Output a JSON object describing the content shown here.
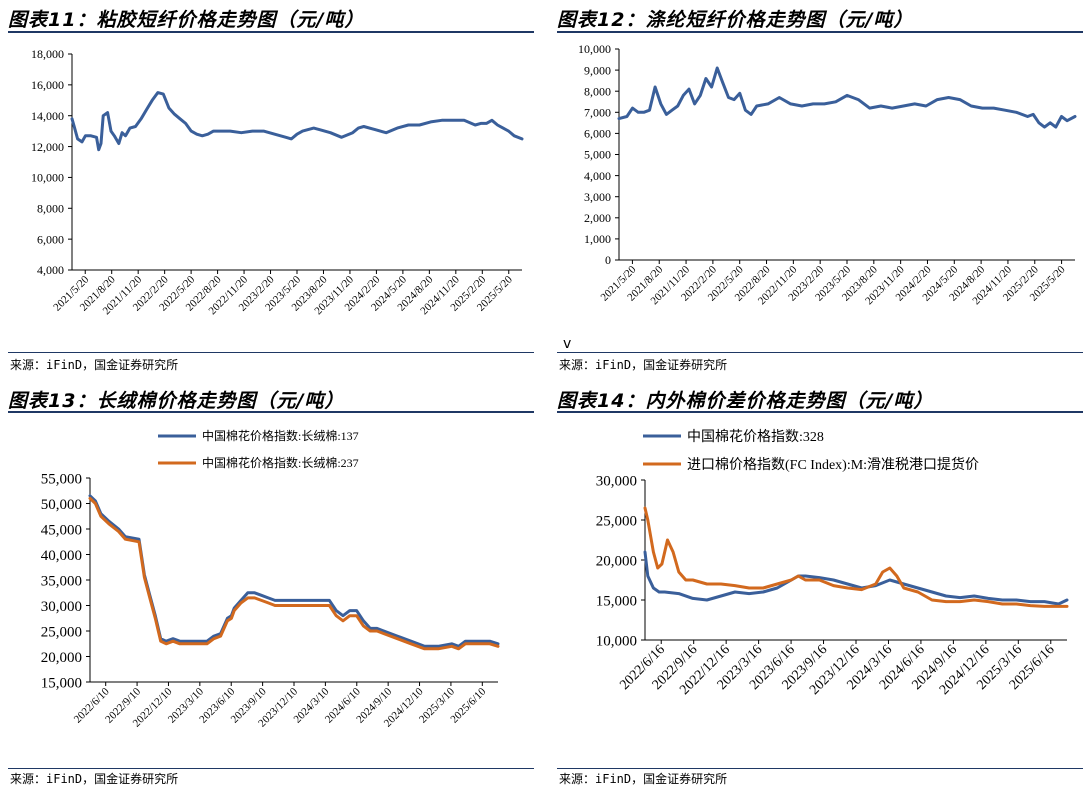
{
  "source_text": "来源：iFinD，国金证券研究所",
  "stray_mark": "v",
  "colors": {
    "blue": "#3a5f9a",
    "orange": "#d2691e",
    "rule": "#1f3864"
  },
  "chart_data": [
    {
      "id": "fig11",
      "type": "line",
      "title": "图表11：粘胶短纤价格走势图（元/吨）",
      "ylim": [
        4000,
        18000
      ],
      "yticks": [
        "18,000",
        "16,000",
        "14,000",
        "12,000",
        "10,000",
        "8,000",
        "6,000",
        "4,000"
      ],
      "ytick_values": [
        18000,
        16000,
        14000,
        12000,
        10000,
        8000,
        6000,
        4000
      ],
      "xticks": [
        "2021/5/20",
        "2021/8/20",
        "2021/11/20",
        "2022/2/20",
        "2022/5/20",
        "2022/8/20",
        "2022/11/20",
        "2023/2/20",
        "2023/5/20",
        "2023/8/20",
        "2023/11/20",
        "2024/2/20",
        "2024/5/20",
        "2024/8/20",
        "2024/11/20",
        "2025/2/20",
        "2025/5/20"
      ],
      "x_start": 2021.38,
      "x_end": 2025.42,
      "series": [
        {
          "name": "粘胶短纤价格",
          "color": "#3a5f9a",
          "x": [
            2021.38,
            2021.4,
            2021.43,
            2021.47,
            2021.5,
            2021.55,
            2021.6,
            2021.62,
            2021.64,
            2021.66,
            2021.7,
            2021.73,
            2021.76,
            2021.8,
            2021.83,
            2021.86,
            2021.9,
            2021.95,
            2022.0,
            2022.05,
            2022.1,
            2022.15,
            2022.2,
            2022.25,
            2022.3,
            2022.35,
            2022.4,
            2022.45,
            2022.5,
            2022.55,
            2022.6,
            2022.65,
            2022.7,
            2022.8,
            2022.9,
            2023.0,
            2023.1,
            2023.2,
            2023.3,
            2023.35,
            2023.4,
            2023.45,
            2023.5,
            2023.55,
            2023.6,
            2023.7,
            2023.8,
            2023.9,
            2023.95,
            2024.0,
            2024.1,
            2024.2,
            2024.3,
            2024.4,
            2024.5,
            2024.6,
            2024.7,
            2024.8,
            2024.9,
            2025.0,
            2025.05,
            2025.1,
            2025.15,
            2025.2,
            2025.25,
            2025.3,
            2025.35,
            2025.42
          ],
          "values": [
            13800,
            13300,
            12500,
            12300,
            12700,
            12700,
            12600,
            11800,
            12200,
            14000,
            14200,
            13000,
            12700,
            12200,
            12900,
            12700,
            13200,
            13300,
            13800,
            14400,
            15000,
            15500,
            15400,
            14500,
            14100,
            13800,
            13500,
            13000,
            12800,
            12700,
            12800,
            13000,
            13000,
            13000,
            12900,
            13000,
            13000,
            12800,
            12600,
            12500,
            12800,
            13000,
            13100,
            13200,
            13100,
            12900,
            12600,
            12900,
            13200,
            13300,
            13100,
            12900,
            13200,
            13400,
            13400,
            13600,
            13700,
            13700,
            13700,
            13400,
            13500,
            13500,
            13700,
            13400,
            13200,
            13000,
            12700,
            12500
          ]
        }
      ]
    },
    {
      "id": "fig12",
      "type": "line",
      "title": "图表12：涤纶短纤价格走势图（元/吨）",
      "ylim": [
        0,
        10000
      ],
      "yticks": [
        "10,000",
        "9,000",
        "8,000",
        "7,000",
        "6,000",
        "5,000",
        "4,000",
        "3,000",
        "2,000",
        "1,000",
        "0"
      ],
      "ytick_values": [
        10000,
        9000,
        8000,
        7000,
        6000,
        5000,
        4000,
        3000,
        2000,
        1000,
        0
      ],
      "xticks": [
        "2021/5/20",
        "2021/8/20",
        "2021/11/20",
        "2022/2/20",
        "2022/5/20",
        "2022/8/20",
        "2022/11/20",
        "2023/2/20",
        "2023/5/20",
        "2023/8/20",
        "2023/11/20",
        "2024/2/20",
        "2024/5/20",
        "2024/8/20",
        "2024/11/20",
        "2025/2/20",
        "2025/5/20"
      ],
      "x_start": 2021.38,
      "x_end": 2025.42,
      "series": [
        {
          "name": "涤纶短纤价格",
          "color": "#3a5f9a",
          "x": [
            2021.38,
            2021.45,
            2021.5,
            2021.55,
            2021.6,
            2021.65,
            2021.7,
            2021.75,
            2021.8,
            2021.85,
            2021.9,
            2021.95,
            2022.0,
            2022.05,
            2022.1,
            2022.15,
            2022.2,
            2022.25,
            2022.3,
            2022.35,
            2022.4,
            2022.45,
            2022.5,
            2022.55,
            2022.6,
            2022.7,
            2022.8,
            2022.9,
            2023.0,
            2023.1,
            2023.2,
            2023.3,
            2023.4,
            2023.5,
            2023.6,
            2023.7,
            2023.8,
            2023.9,
            2024.0,
            2024.1,
            2024.2,
            2024.3,
            2024.4,
            2024.5,
            2024.6,
            2024.7,
            2024.8,
            2024.9,
            2025.0,
            2025.05,
            2025.1,
            2025.15,
            2025.2,
            2025.25,
            2025.3,
            2025.35,
            2025.42
          ],
          "values": [
            6700,
            6800,
            7200,
            7000,
            7000,
            7100,
            8200,
            7400,
            6900,
            7100,
            7300,
            7800,
            8100,
            7400,
            7800,
            8600,
            8200,
            9100,
            8400,
            7700,
            7600,
            7900,
            7100,
            6900,
            7300,
            7400,
            7700,
            7400,
            7300,
            7400,
            7400,
            7500,
            7800,
            7600,
            7200,
            7300,
            7200,
            7300,
            7400,
            7300,
            7600,
            7700,
            7600,
            7300,
            7200,
            7200,
            7100,
            7000,
            6800,
            6900,
            6500,
            6300,
            6500,
            6300,
            6800,
            6600,
            6800
          ]
        }
      ]
    },
    {
      "id": "fig13",
      "type": "line",
      "title": "图表13：长绒棉价格走势图（元/吨）",
      "ylim": [
        15000,
        55000
      ],
      "yticks": [
        "55,000",
        "50,000",
        "45,000",
        "40,000",
        "35,000",
        "30,000",
        "25,000",
        "20,000",
        "15,000"
      ],
      "ytick_values": [
        55000,
        50000,
        45000,
        40000,
        35000,
        30000,
        25000,
        20000,
        15000
      ],
      "xticks": [
        "2022/6/10",
        "2022/9/10",
        "2022/12/10",
        "2023/3/10",
        "2023/6/10",
        "2023/9/10",
        "2023/12/10",
        "2024/3/10",
        "2024/6/10",
        "2024/9/10",
        "2024/12/10",
        "2025/3/10",
        "2025/6/10"
      ],
      "x_start": 2022.44,
      "x_end": 2025.44,
      "series": [
        {
          "name": "中国棉花价格指数:长绒棉:137",
          "color": "#3a5f9a",
          "x": [
            2022.44,
            2022.48,
            2022.52,
            2022.58,
            2022.65,
            2022.7,
            2022.8,
            2022.84,
            2022.88,
            2022.92,
            2022.96,
            2023.0,
            2023.05,
            2023.1,
            2023.15,
            2023.2,
            2023.3,
            2023.35,
            2023.4,
            2023.45,
            2023.48,
            2023.5,
            2023.55,
            2023.6,
            2023.65,
            2023.7,
            2023.75,
            2023.8,
            2023.9,
            2024.0,
            2024.1,
            2024.2,
            2024.25,
            2024.3,
            2024.35,
            2024.4,
            2024.45,
            2024.5,
            2024.55,
            2024.6,
            2024.7,
            2024.8,
            2024.9,
            2025.0,
            2025.1,
            2025.15,
            2025.2,
            2025.3,
            2025.38,
            2025.44
          ],
          "values": [
            51500,
            50500,
            48000,
            46500,
            45000,
            43500,
            43000,
            36000,
            32000,
            28000,
            23500,
            23000,
            23500,
            23000,
            23000,
            23000,
            23000,
            24000,
            24500,
            27500,
            28000,
            29500,
            31000,
            32500,
            32500,
            32000,
            31500,
            31000,
            31000,
            31000,
            31000,
            31000,
            29000,
            28000,
            29000,
            29000,
            27000,
            25500,
            25500,
            25000,
            24000,
            23000,
            22000,
            22000,
            22500,
            22000,
            23000,
            23000,
            23000,
            22500
          ]
        },
        {
          "name": "中国棉花价格指数:长绒棉:237",
          "color": "#d2691e",
          "x": [
            2022.44,
            2022.48,
            2022.52,
            2022.58,
            2022.65,
            2022.7,
            2022.8,
            2022.84,
            2022.88,
            2022.92,
            2022.96,
            2023.0,
            2023.05,
            2023.1,
            2023.15,
            2023.2,
            2023.3,
            2023.35,
            2023.4,
            2023.45,
            2023.48,
            2023.5,
            2023.55,
            2023.6,
            2023.65,
            2023.7,
            2023.75,
            2023.8,
            2023.9,
            2024.0,
            2024.1,
            2024.2,
            2024.25,
            2024.3,
            2024.35,
            2024.4,
            2024.45,
            2024.5,
            2024.55,
            2024.6,
            2024.7,
            2024.8,
            2024.9,
            2025.0,
            2025.1,
            2025.15,
            2025.2,
            2025.3,
            2025.38,
            2025.44
          ],
          "values": [
            51000,
            50000,
            47500,
            46000,
            44500,
            43000,
            42500,
            35500,
            31500,
            27500,
            23000,
            22500,
            23000,
            22500,
            22500,
            22500,
            22500,
            23500,
            24000,
            27000,
            27500,
            29000,
            30500,
            31500,
            31500,
            31000,
            30500,
            30000,
            30000,
            30000,
            30000,
            30000,
            28000,
            27000,
            28000,
            28000,
            26000,
            25000,
            25000,
            24500,
            23500,
            22500,
            21500,
            21500,
            22000,
            21500,
            22500,
            22500,
            22500,
            22000
          ]
        }
      ]
    },
    {
      "id": "fig14",
      "type": "line",
      "title": "图表14：内外棉价差价格走势图（元/吨）",
      "ylim": [
        10000,
        30000
      ],
      "yticks": [
        "30,000",
        "25,000",
        "20,000",
        "15,000",
        "10,000"
      ],
      "ytick_values": [
        30000,
        25000,
        20000,
        15000,
        10000
      ],
      "xticks": [
        "2022/6/16",
        "2022/9/16",
        "2022/12/16",
        "2023/3/16",
        "2023/6/16",
        "2023/9/16",
        "2023/12/16",
        "2024/3/16",
        "2024/6/16",
        "2024/9/16",
        "2024/12/16",
        "2025/3/16",
        "2025/6/16"
      ],
      "x_start": 2022.46,
      "x_end": 2025.46,
      "series": [
        {
          "name": "中国棉花价格指数:328",
          "color": "#3a5f9a",
          "x": [
            2022.46,
            2022.48,
            2022.52,
            2022.56,
            2022.6,
            2022.7,
            2022.8,
            2022.9,
            2023.0,
            2023.1,
            2023.2,
            2023.3,
            2023.4,
            2023.5,
            2023.55,
            2023.6,
            2023.7,
            2023.8,
            2023.9,
            2024.0,
            2024.1,
            2024.2,
            2024.3,
            2024.4,
            2024.5,
            2024.6,
            2024.7,
            2024.8,
            2024.9,
            2025.0,
            2025.1,
            2025.2,
            2025.3,
            2025.4,
            2025.46
          ],
          "values": [
            21000,
            18000,
            16500,
            16000,
            16000,
            15800,
            15200,
            15000,
            15500,
            16000,
            15800,
            16000,
            16500,
            17500,
            18000,
            18000,
            17800,
            17500,
            17000,
            16500,
            16800,
            17500,
            17000,
            16500,
            16000,
            15500,
            15300,
            15500,
            15200,
            15000,
            15000,
            14800,
            14800,
            14500,
            15000
          ]
        },
        {
          "name": "进口棉价格指数(FC Index):M:滑准税港口提货价",
          "color": "#d2691e",
          "x": [
            2022.46,
            2022.48,
            2022.52,
            2022.55,
            2022.58,
            2022.62,
            2022.66,
            2022.7,
            2022.75,
            2022.8,
            2022.9,
            2023.0,
            2023.1,
            2023.2,
            2023.3,
            2023.4,
            2023.5,
            2023.55,
            2023.6,
            2023.7,
            2023.8,
            2023.9,
            2024.0,
            2024.1,
            2024.15,
            2024.2,
            2024.25,
            2024.3,
            2024.4,
            2024.5,
            2024.6,
            2024.7,
            2024.8,
            2024.9,
            2025.0,
            2025.1,
            2025.2,
            2025.3,
            2025.4,
            2025.46
          ],
          "values": [
            26500,
            25000,
            21000,
            19000,
            19500,
            22500,
            21000,
            18500,
            17500,
            17500,
            17000,
            17000,
            16800,
            16500,
            16500,
            17000,
            17500,
            18000,
            17500,
            17500,
            16800,
            16500,
            16300,
            17000,
            18500,
            19000,
            18000,
            16500,
            16000,
            15000,
            14800,
            14800,
            15000,
            14800,
            14500,
            14500,
            14300,
            14200,
            14200,
            14200
          ]
        }
      ]
    }
  ]
}
